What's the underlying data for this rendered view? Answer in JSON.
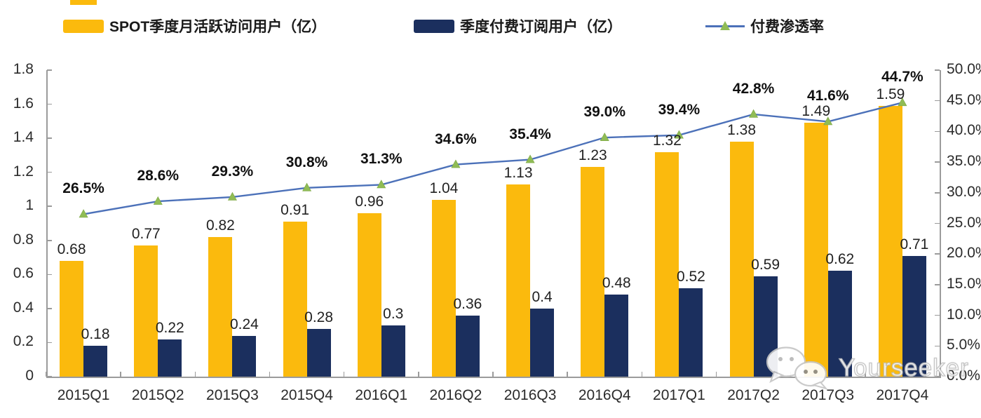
{
  "chart_data": {
    "type": "combo",
    "title": "",
    "categories": [
      "2015Q1",
      "2015Q2",
      "2015Q3",
      "2015Q4",
      "2016Q1",
      "2016Q2",
      "2016Q3",
      "2016Q4",
      "2017Q1",
      "2017Q2",
      "2017Q3",
      "2017Q4"
    ],
    "series": [
      {
        "name": "SPOT季度月活跃访问用户（亿）",
        "type": "bar",
        "axis": "left",
        "color": "#FBBA0D",
        "values": [
          0.68,
          0.77,
          0.82,
          0.91,
          0.96,
          1.04,
          1.13,
          1.23,
          1.32,
          1.38,
          1.49,
          1.59
        ],
        "labels": [
          "0.68",
          "0.77",
          "0.82",
          "0.91",
          "0.96",
          "1.04",
          "1.13",
          "1.23",
          "1.32",
          "1.38",
          "1.49",
          "1.59"
        ]
      },
      {
        "name": "季度付费订阅用户（亿）",
        "type": "bar",
        "axis": "left",
        "color": "#1B2F5E",
        "values": [
          0.18,
          0.22,
          0.24,
          0.28,
          0.3,
          0.36,
          0.4,
          0.48,
          0.52,
          0.59,
          0.62,
          0.71
        ],
        "labels": [
          "0.18",
          "0.22",
          "0.24",
          "0.28",
          "0.3",
          "0.36",
          "0.4",
          "0.48",
          "0.52",
          "0.59",
          "0.62",
          "0.71"
        ]
      },
      {
        "name": "付费渗透率",
        "type": "line",
        "axis": "right",
        "color": "#4C71B9",
        "marker": "triangle",
        "marker_color": "#90BC55",
        "values": [
          26.5,
          28.6,
          29.3,
          30.8,
          31.3,
          34.6,
          35.4,
          39.0,
          39.4,
          42.8,
          41.6,
          44.7
        ],
        "labels": [
          "26.5%",
          "28.6%",
          "29.3%",
          "30.8%",
          "31.3%",
          "34.6%",
          "35.4%",
          "39.0%",
          "39.4%",
          "42.8%",
          "41.6%",
          "44.7%"
        ]
      }
    ],
    "left_axis": {
      "min": 0,
      "max": 1.8,
      "tick_step": 0.2,
      "tick_labels": [
        "1.8",
        "1.6",
        "1.4",
        "1.2",
        "1",
        "0.8",
        "0.6",
        "0.4",
        "0.2",
        "0"
      ]
    },
    "right_axis": {
      "min": 0,
      "max": 50,
      "tick_step": 5,
      "tick_labels": [
        "50.0%",
        "45.0%",
        "40.0%",
        "35.0%",
        "30.0%",
        "25.0%",
        "20.0%",
        "15.0%",
        "10.0%",
        "5.0%",
        "0.0%"
      ]
    },
    "grid": false,
    "legend_position": "top",
    "axis_color": "#9b9b9b"
  },
  "watermark": {
    "text": "Yourseeker"
  }
}
